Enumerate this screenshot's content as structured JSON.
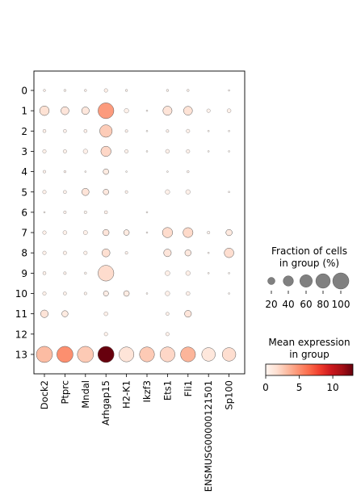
{
  "chart_data": {
    "type": "dotplot",
    "categories_y": [
      "0",
      "1",
      "2",
      "3",
      "4",
      "5",
      "6",
      "7",
      "8",
      "9",
      "10",
      "11",
      "12",
      "13"
    ],
    "categories_x": [
      "Dock2",
      "Ptprc",
      "Mndal",
      "Arhgap15",
      "H2-K1",
      "Ikzf3",
      "Ets1",
      "Fli1",
      "ENSMUSG00000121501",
      "Sp100"
    ],
    "fraction": [
      [
        2,
        2,
        2,
        5,
        2,
        0,
        2,
        2,
        0,
        1
      ],
      [
        35,
        25,
        22,
        95,
        8,
        1,
        32,
        30,
        5,
        6
      ],
      [
        4,
        4,
        4,
        60,
        3,
        1,
        3,
        5,
        1,
        1
      ],
      [
        5,
        5,
        8,
        40,
        5,
        1,
        6,
        5,
        1,
        1
      ],
      [
        3,
        2,
        1,
        12,
        1,
        0,
        1,
        2,
        0,
        0
      ],
      [
        5,
        4,
        20,
        12,
        3,
        0,
        8,
        8,
        0,
        1
      ],
      [
        1,
        3,
        3,
        4,
        0,
        1,
        0,
        0,
        0,
        0
      ],
      [
        5,
        6,
        7,
        15,
        12,
        1,
        40,
        38,
        3,
        15
      ],
      [
        5,
        5,
        5,
        25,
        3,
        0,
        22,
        15,
        1,
        35
      ],
      [
        4,
        3,
        2,
        95,
        0,
        0,
        9,
        8,
        1,
        1
      ],
      [
        5,
        4,
        3,
        10,
        12,
        1,
        8,
        6,
        0,
        1
      ],
      [
        22,
        15,
        0,
        6,
        0,
        0,
        4,
        18,
        0,
        0
      ],
      [
        0,
        0,
        0,
        5,
        0,
        0,
        5,
        0,
        0,
        0
      ],
      [
        100,
        100,
        100,
        100,
        85,
        85,
        85,
        85,
        70,
        70
      ]
    ],
    "expression": [
      [
        0.3,
        0.2,
        0.3,
        0.5,
        0.2,
        0,
        0.2,
        0.3,
        0,
        0.1
      ],
      [
        1.5,
        1.2,
        1.1,
        4.5,
        0.3,
        0.1,
        1.3,
        1.4,
        0.2,
        0.3
      ],
      [
        0.3,
        0.2,
        0.3,
        2.5,
        0.2,
        0.1,
        0.2,
        0.3,
        0.1,
        0.1
      ],
      [
        0.3,
        0.3,
        0.4,
        2.0,
        0.3,
        0.1,
        0.3,
        0.3,
        0.1,
        0.1
      ],
      [
        0.2,
        0.2,
        0.1,
        0.8,
        0.1,
        0,
        0.1,
        0.1,
        0,
        0
      ],
      [
        0.3,
        0.2,
        1.3,
        1.0,
        0.2,
        0,
        0.4,
        0.4,
        0,
        0.1
      ],
      [
        0.1,
        0.2,
        0.2,
        0.4,
        0,
        0.1,
        0,
        0,
        0,
        0
      ],
      [
        0.3,
        0.3,
        0.4,
        1.2,
        0.8,
        0.1,
        1.8,
        1.9,
        0.2,
        0.9
      ],
      [
        0.3,
        0.3,
        0.3,
        1.6,
        0.2,
        0,
        1.2,
        1.0,
        0.1,
        1.7
      ],
      [
        0.3,
        0.2,
        0.1,
        1.8,
        0,
        0,
        0.5,
        0.5,
        0.1,
        0.1
      ],
      [
        0.3,
        0.3,
        0.2,
        0.6,
        0.7,
        0.1,
        0.4,
        0.4,
        0,
        0.1
      ],
      [
        1.3,
        0.8,
        0,
        0.4,
        0,
        0,
        0.3,
        1.2,
        0,
        0
      ],
      [
        0,
        0,
        0,
        0.3,
        0,
        0,
        0.3,
        0,
        0,
        0
      ],
      [
        3.2,
        5.0,
        2.6,
        13.0,
        1.3,
        2.6,
        2.0,
        3.5,
        1.1,
        1.7
      ]
    ],
    "size_legend": {
      "title": "Fraction of cells\nin group (%)",
      "values": [
        20,
        40,
        60,
        80,
        100
      ],
      "labels": [
        "20",
        "40",
        "60",
        "80",
        "100"
      ]
    },
    "color_legend": {
      "title": "Mean expression\nin group",
      "min": 0,
      "max": 13,
      "ticks": [
        0,
        5,
        10
      ],
      "tick_labels": [
        "0",
        "5",
        "10"
      ],
      "colormap": "Reds"
    },
    "grid": false
  }
}
